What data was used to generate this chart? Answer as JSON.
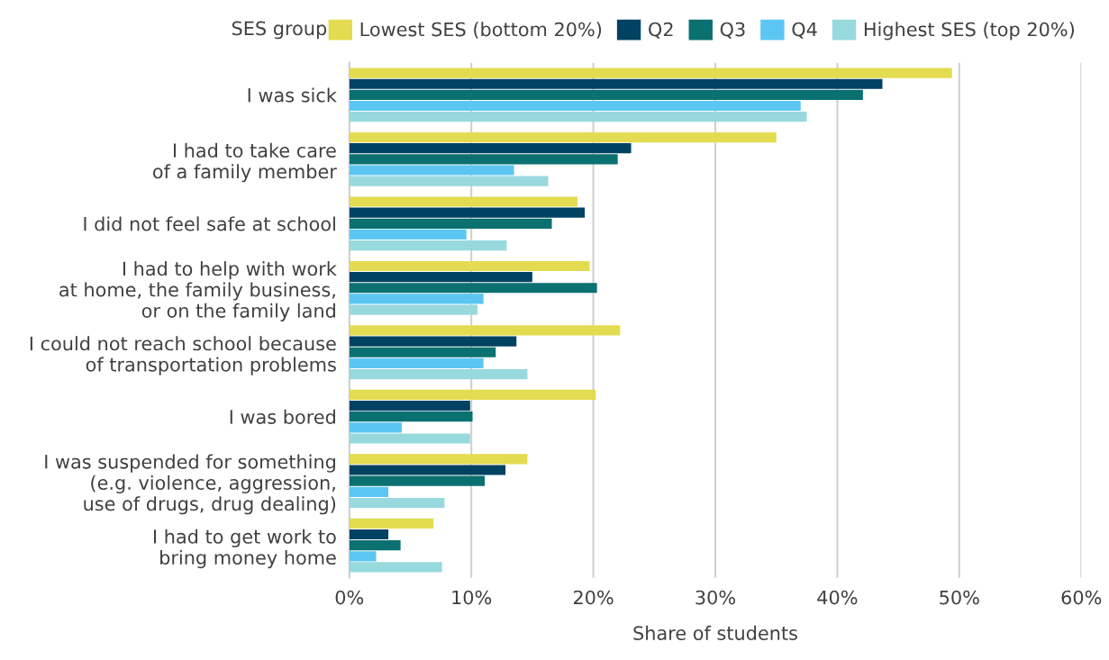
{
  "chart_data": {
    "type": "bar",
    "orientation": "horizontal",
    "xlabel": "Share of students",
    "legend_title": "SES group",
    "legend": "top",
    "grid": "x",
    "categories": [
      "I was sick",
      "I had to take care\nof a family member",
      "I did not feel safe at school",
      "I had to help with work\nat home, the family business,\nor on the family land",
      "I could not reach school because\nof transportation problems",
      "I was bored",
      "I was suspended for something\n(e.g. violence, aggression,\nuse of drugs, drug dealing)",
      "I had to get work to\nbring money home"
    ],
    "xlim": [
      0,
      60
    ],
    "xticks": [
      {
        "value": 0,
        "label": "0%"
      },
      {
        "value": 10,
        "label": "10%"
      },
      {
        "value": 20,
        "label": "20%"
      },
      {
        "value": 30,
        "label": "30%"
      },
      {
        "value": 40,
        "label": "40%"
      },
      {
        "value": 50,
        "label": "50%"
      },
      {
        "value": 60,
        "label": "60%"
      }
    ],
    "series": [
      {
        "name": "Lowest SES (bottom 20%)",
        "color": "#e3dc50",
        "values": [
          49.4,
          35.0,
          18.7,
          19.7,
          22.2,
          20.2,
          14.6,
          6.9
        ]
      },
      {
        "name": "Q2",
        "color": "#004261",
        "values": [
          43.7,
          23.1,
          19.3,
          15.0,
          13.7,
          9.9,
          12.8,
          3.2
        ]
      },
      {
        "name": "Q3",
        "color": "#0a7070",
        "values": [
          42.1,
          22.0,
          16.6,
          20.3,
          12.0,
          10.1,
          11.1,
          4.2
        ]
      },
      {
        "name": "Q4",
        "color": "#5bc6f1",
        "values": [
          37.0,
          13.5,
          9.6,
          11.0,
          11.0,
          4.3,
          3.2,
          2.2
        ]
      },
      {
        "name": "Highest SES (top 20%)",
        "color": "#98d9de",
        "values": [
          37.5,
          16.3,
          12.9,
          10.5,
          14.6,
          9.9,
          7.8,
          7.6
        ]
      }
    ]
  }
}
